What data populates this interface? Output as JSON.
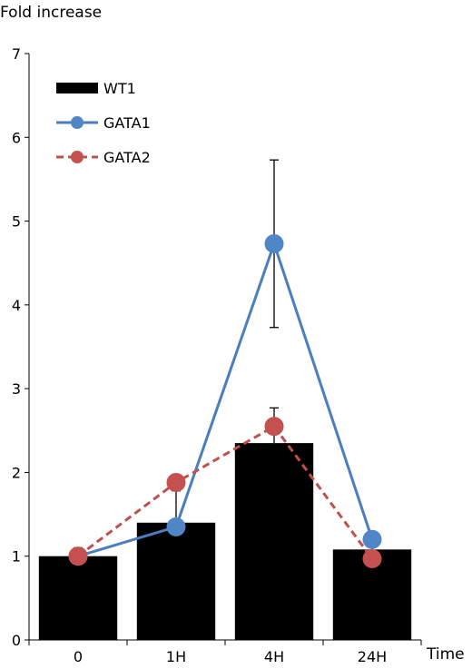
{
  "chart_data": {
    "type": "bar",
    "ylabel": "Fold increase",
    "xlabel": "Time",
    "categories": [
      "0",
      "1H",
      "4H",
      "24H"
    ],
    "ylim": [
      0,
      7
    ],
    "yticks": [
      "0",
      "1",
      "2",
      "3",
      "4",
      "5",
      "6",
      "7"
    ],
    "grid": false,
    "legend_position": "top-left",
    "series": [
      {
        "name": "WT1",
        "kind": "bar",
        "color": "#000000",
        "values": [
          1.0,
          1.4,
          2.35,
          1.08
        ],
        "error": [
          0.1,
          0.38,
          0.42,
          0.12
        ]
      },
      {
        "name": "GATA1",
        "kind": "line",
        "line_style": "solid",
        "color": "#4a7ec0",
        "marker_color": "#4f86c6",
        "values": [
          1.0,
          1.35,
          4.73,
          1.2
        ],
        "error": [
          0.0,
          0.0,
          1.0,
          0.0
        ]
      },
      {
        "name": "GATA2",
        "kind": "line",
        "line_style": "dashed",
        "color": "#c0504d",
        "marker_color": "#c55050",
        "values": [
          1.0,
          1.88,
          2.55,
          0.97
        ],
        "error": [
          0.0,
          0.0,
          0.0,
          0.0
        ]
      }
    ]
  }
}
